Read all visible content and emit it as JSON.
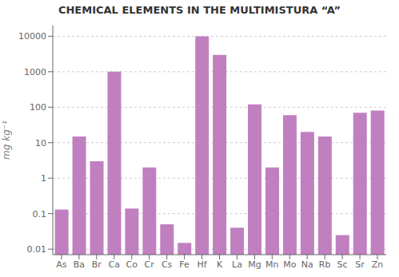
{
  "chart_data": {
    "type": "bar",
    "title": "CHEMICAL ELEMENTS IN THE MULTIMISTURA “A”",
    "ylabel": "mg kg⁻¹",
    "categories": [
      "As",
      "Ba",
      "Br",
      "Ca",
      "Co",
      "Cr",
      "Cs",
      "Fe",
      "Hf",
      "K",
      "La",
      "Mg",
      "Mn",
      "Mo",
      "Na",
      "Rb",
      "Sc",
      "Sr",
      "Zn"
    ],
    "values": [
      0.13,
      15,
      3,
      1000,
      0.14,
      2,
      0.05,
      0.015,
      10000,
      3000,
      0.04,
      120,
      2,
      60,
      20,
      15,
      0.025,
      70,
      80
    ],
    "color": "#c080c0",
    "log": "y",
    "ylim": [
      0.007,
      20000
    ],
    "yticks": [
      0.01,
      0.1,
      1,
      10,
      100,
      1000,
      10000
    ],
    "grid": true
  }
}
